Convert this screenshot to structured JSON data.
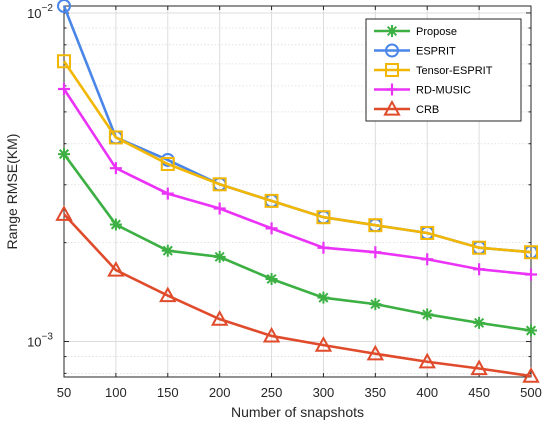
{
  "chart_data": {
    "type": "line",
    "xlabel": "Number of snapshots",
    "ylabel": "Range RMSE(KM)",
    "x": [
      50,
      100,
      150,
      200,
      250,
      300,
      350,
      400,
      450,
      500
    ],
    "xlim": [
      50,
      500
    ],
    "ylim": [
      0.00078,
      0.0105
    ],
    "yscale": "log",
    "xticks": [
      "50",
      "100",
      "150",
      "200",
      "250",
      "300",
      "350",
      "400",
      "450",
      "500"
    ],
    "yticks": [
      {
        "value": 0.001,
        "base": "10",
        "exp": "−3"
      },
      {
        "value": 0.01,
        "base": "10",
        "exp": "−2"
      }
    ],
    "grid": true,
    "legend_position": "top-right",
    "series": [
      {
        "name": "Propose",
        "color": "#3cb043",
        "marker": "asterisk",
        "values": [
          0.00372,
          0.00227,
          0.00189,
          0.00181,
          0.00155,
          0.00136,
          0.0013,
          0.00121,
          0.00114,
          0.00108
        ]
      },
      {
        "name": "ESPRIT",
        "color": "#4a86e8",
        "marker": "circle",
        "values": [
          0.0105,
          0.00418,
          0.00357,
          0.00301,
          0.00268,
          0.00239,
          0.00226,
          0.00214,
          0.00193,
          0.00187
        ]
      },
      {
        "name": "Tensor-ESPRIT",
        "color": "#f2b705",
        "marker": "square",
        "values": [
          0.00713,
          0.00418,
          0.00347,
          0.00301,
          0.00268,
          0.00239,
          0.00226,
          0.00214,
          0.00193,
          0.00187
        ]
      },
      {
        "name": "RD-MUSIC",
        "color": "#ea33f7",
        "marker": "plus",
        "values": [
          0.00587,
          0.00337,
          0.00282,
          0.00254,
          0.00221,
          0.00193,
          0.00187,
          0.00178,
          0.00166,
          0.0016
        ]
      },
      {
        "name": "CRB",
        "color": "#e04b2c",
        "marker": "triangle",
        "values": [
          0.00244,
          0.00165,
          0.00138,
          0.00117,
          0.00104,
          0.000975,
          0.000918,
          0.000868,
          0.000828,
          0.000785
        ]
      }
    ]
  }
}
